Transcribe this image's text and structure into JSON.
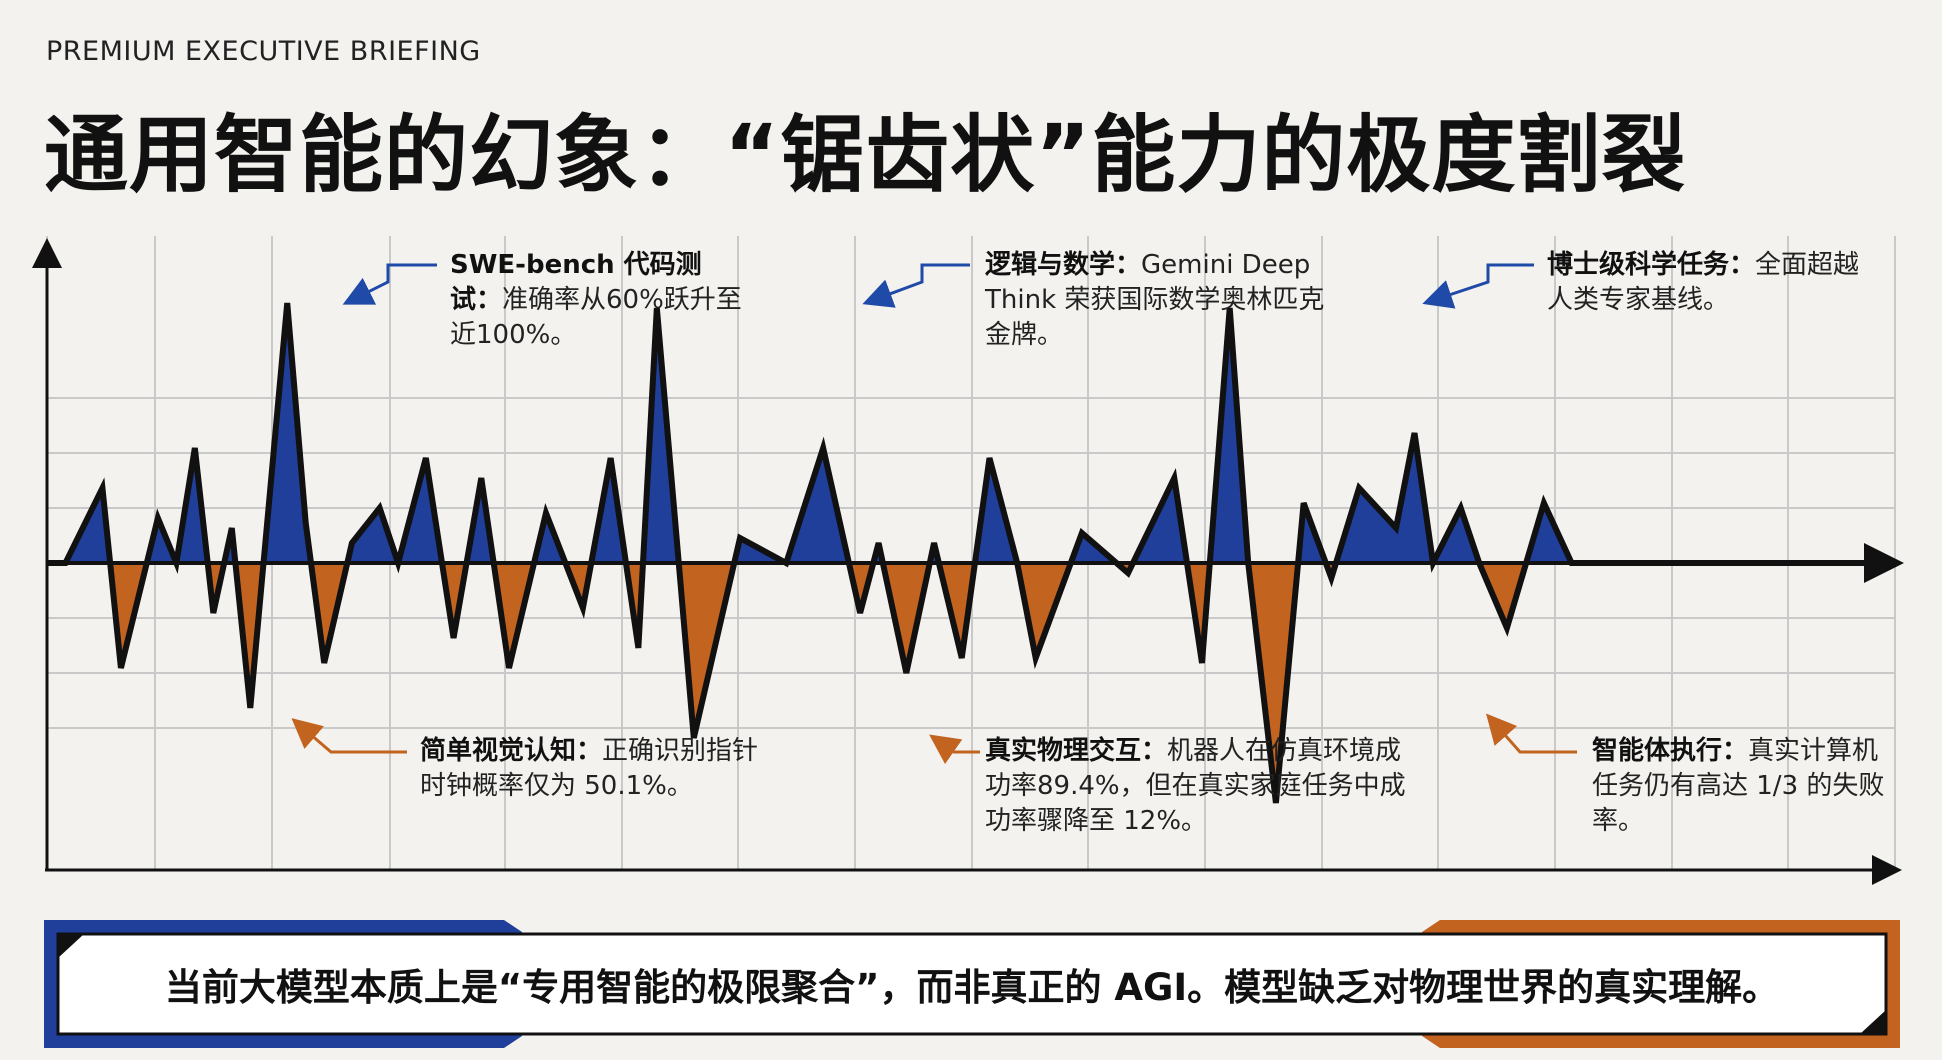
{
  "header": {
    "kicker": "PREMIUM EXECUTIVE BRIEFING",
    "title": "通用智能的幻象：“锯齿状”能力的极度割裂"
  },
  "colors": {
    "positive_fill": "#1f3f9a",
    "negative_fill": "#c2631f",
    "positive_arrow": "#1f4aa8",
    "negative_arrow": "#c2631f",
    "line": "#111111",
    "grid": "#c9c9c9",
    "background": "#f3f2ee"
  },
  "callouts": {
    "swe": {
      "bold": "SWE-bench 代码测试：",
      "text": "准确率从60%跃升至近100%。"
    },
    "math": {
      "bold": "逻辑与数学：",
      "text": "Gemini Deep Think 荣获国际数学奥林匹克金牌。"
    },
    "phd": {
      "bold": "博士级科学任务：",
      "text": "全面超越人类专家基线。"
    },
    "vision": {
      "bold": "简单视觉认知：",
      "text": "正确识别指针时钟概率仅为 50.1%。"
    },
    "physical": {
      "bold": "真实物理交互：",
      "text": "机器人在仿真环境成功率89.4%，但在真实家庭任务中成功率骤降至 12%。"
    },
    "agent": {
      "bold": "智能体执行：",
      "text": "真实计算机任务仍有高达 1/3 的失败率。"
    }
  },
  "banner": {
    "text": "当前大模型本质上是“专用智能的极限聚合”，而非真正的 AGI。模型缺乏对物理世界的真实理解。"
  },
  "chart_data": {
    "type": "area",
    "title": "“锯齿状”能力的极度割裂",
    "xlabel": "",
    "ylabel": "",
    "xlim": [
      0,
      100
    ],
    "ylim": [
      -5,
      5
    ],
    "grid": true,
    "baseline": 0,
    "x": [
      0,
      1,
      3,
      4,
      6,
      7,
      8,
      9,
      10,
      11,
      13,
      14,
      15,
      16.5,
      18,
      19,
      20.5,
      22,
      23.5,
      25,
      27,
      29,
      30.5,
      32,
      33,
      35,
      37.5,
      40,
      42,
      44,
      45,
      46.5,
      48,
      49.5,
      51,
      52.5,
      53.5,
      56,
      58.5,
      61,
      62.5,
      64,
      65,
      66.5,
      68,
      69.5,
      71,
      73,
      74,
      75,
      76.5,
      77.5,
      79,
      81,
      82.5,
      84,
      87.5,
      90,
      91,
      92,
      94,
      95.5,
      96.5,
      97.5,
      99,
      100
    ],
    "y": [
      0,
      0,
      1.5,
      -2.1,
      0.9,
      0,
      2.3,
      -1,
      0.7,
      -2.9,
      5.2,
      0.8,
      -2,
      0.4,
      1.1,
      0,
      2.1,
      -1.5,
      1.7,
      -2.1,
      1,
      -0.9,
      2.1,
      -1.7,
      5.1,
      -3.5,
      0.5,
      0,
      2.3,
      -1,
      0.4,
      -2.2,
      0.4,
      -1.9,
      2.1,
      0,
      -1.9,
      0.6,
      -0.2,
      1.7,
      -2,
      5.1,
      0,
      -4.8,
      1.2,
      -0.3,
      1.5,
      0.7,
      2.6,
      0,
      1.1,
      0,
      -1.3,
      1.2,
      0,
      0,
      0,
      0,
      0,
      0,
      0,
      0,
      0,
      0,
      0,
      0
    ],
    "annotations": [
      {
        "x": 17,
        "y": 5.2,
        "label": "SWE-bench 代码测试"
      },
      {
        "x": 44,
        "y": 5.1,
        "label": "逻辑与数学"
      },
      {
        "x": 73,
        "y": 5.1,
        "label": "博士级科学任务"
      },
      {
        "x": 13.5,
        "y": -2.9,
        "label": "简单视觉认知"
      },
      {
        "x": 46,
        "y": -3.5,
        "label": "真实物理交互"
      },
      {
        "x": 73,
        "y": -4.8,
        "label": "智能体执行"
      }
    ]
  }
}
